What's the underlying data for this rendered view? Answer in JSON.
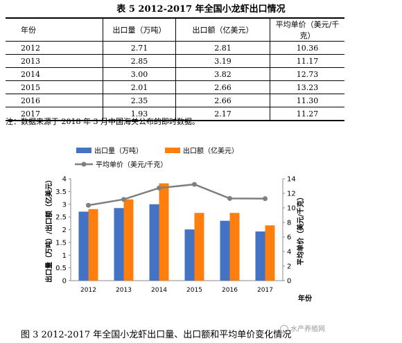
{
  "table": {
    "title": "表 5 2012-2017 年全国小龙虾出口情况",
    "headers": [
      "年份",
      "出口量（万吨）",
      "出口额（亿美元）",
      "平均单价（美元/千克）"
    ],
    "rows": [
      [
        "2012",
        "2.71",
        "2.81",
        "10.36"
      ],
      [
        "2013",
        "2.85",
        "3.19",
        "11.17"
      ],
      [
        "2014",
        "3.00",
        "3.82",
        "12.73"
      ],
      [
        "2015",
        "2.01",
        "2.66",
        "13.23"
      ],
      [
        "2016",
        "2.35",
        "2.66",
        "11.30"
      ],
      [
        "2017",
        "1.93",
        "2.17",
        "11.27"
      ]
    ],
    "note": "注：数据来源于 2018 年 3 月中国海关公布的即时数据。"
  },
  "chart_data": {
    "type": "bar",
    "categories": [
      "2012",
      "2013",
      "2014",
      "2015",
      "2016",
      "2017"
    ],
    "series": [
      {
        "name": "出口量（万吨）",
        "type": "bar",
        "axis": "left",
        "values": [
          2.71,
          2.85,
          3.0,
          2.01,
          2.35,
          1.93
        ],
        "color": "#4472C4"
      },
      {
        "name": "出口额（亿美元）",
        "type": "bar",
        "axis": "left",
        "values": [
          2.81,
          3.19,
          3.82,
          2.66,
          2.66,
          2.17
        ],
        "color": "#FF7F0E"
      },
      {
        "name": "平均单价（美元/千克）",
        "type": "line",
        "axis": "right",
        "values": [
          10.36,
          11.17,
          12.73,
          13.23,
          11.3,
          11.27
        ],
        "color": "#7F7F7F"
      }
    ],
    "ylabel": "出口量（万吨）/出口额（亿美元）",
    "y2label": "平均单价（美元/千克）",
    "xlabel": "年份",
    "ylim": [
      0,
      4
    ],
    "yticks": [
      "0",
      "0.5",
      "1",
      "1.5",
      "2",
      "2.5",
      "3",
      "3.5",
      "4"
    ],
    "y2lim": [
      0,
      14
    ],
    "y2ticks": [
      "0",
      "2",
      "4",
      "6",
      "8",
      "10",
      "12",
      "14"
    ],
    "grid": false,
    "legend": "top"
  },
  "caption": "图 3 2012-2017 年全国小龙虾出口量、出口额和平均单价变化情况",
  "watermark": "水产养殖网"
}
